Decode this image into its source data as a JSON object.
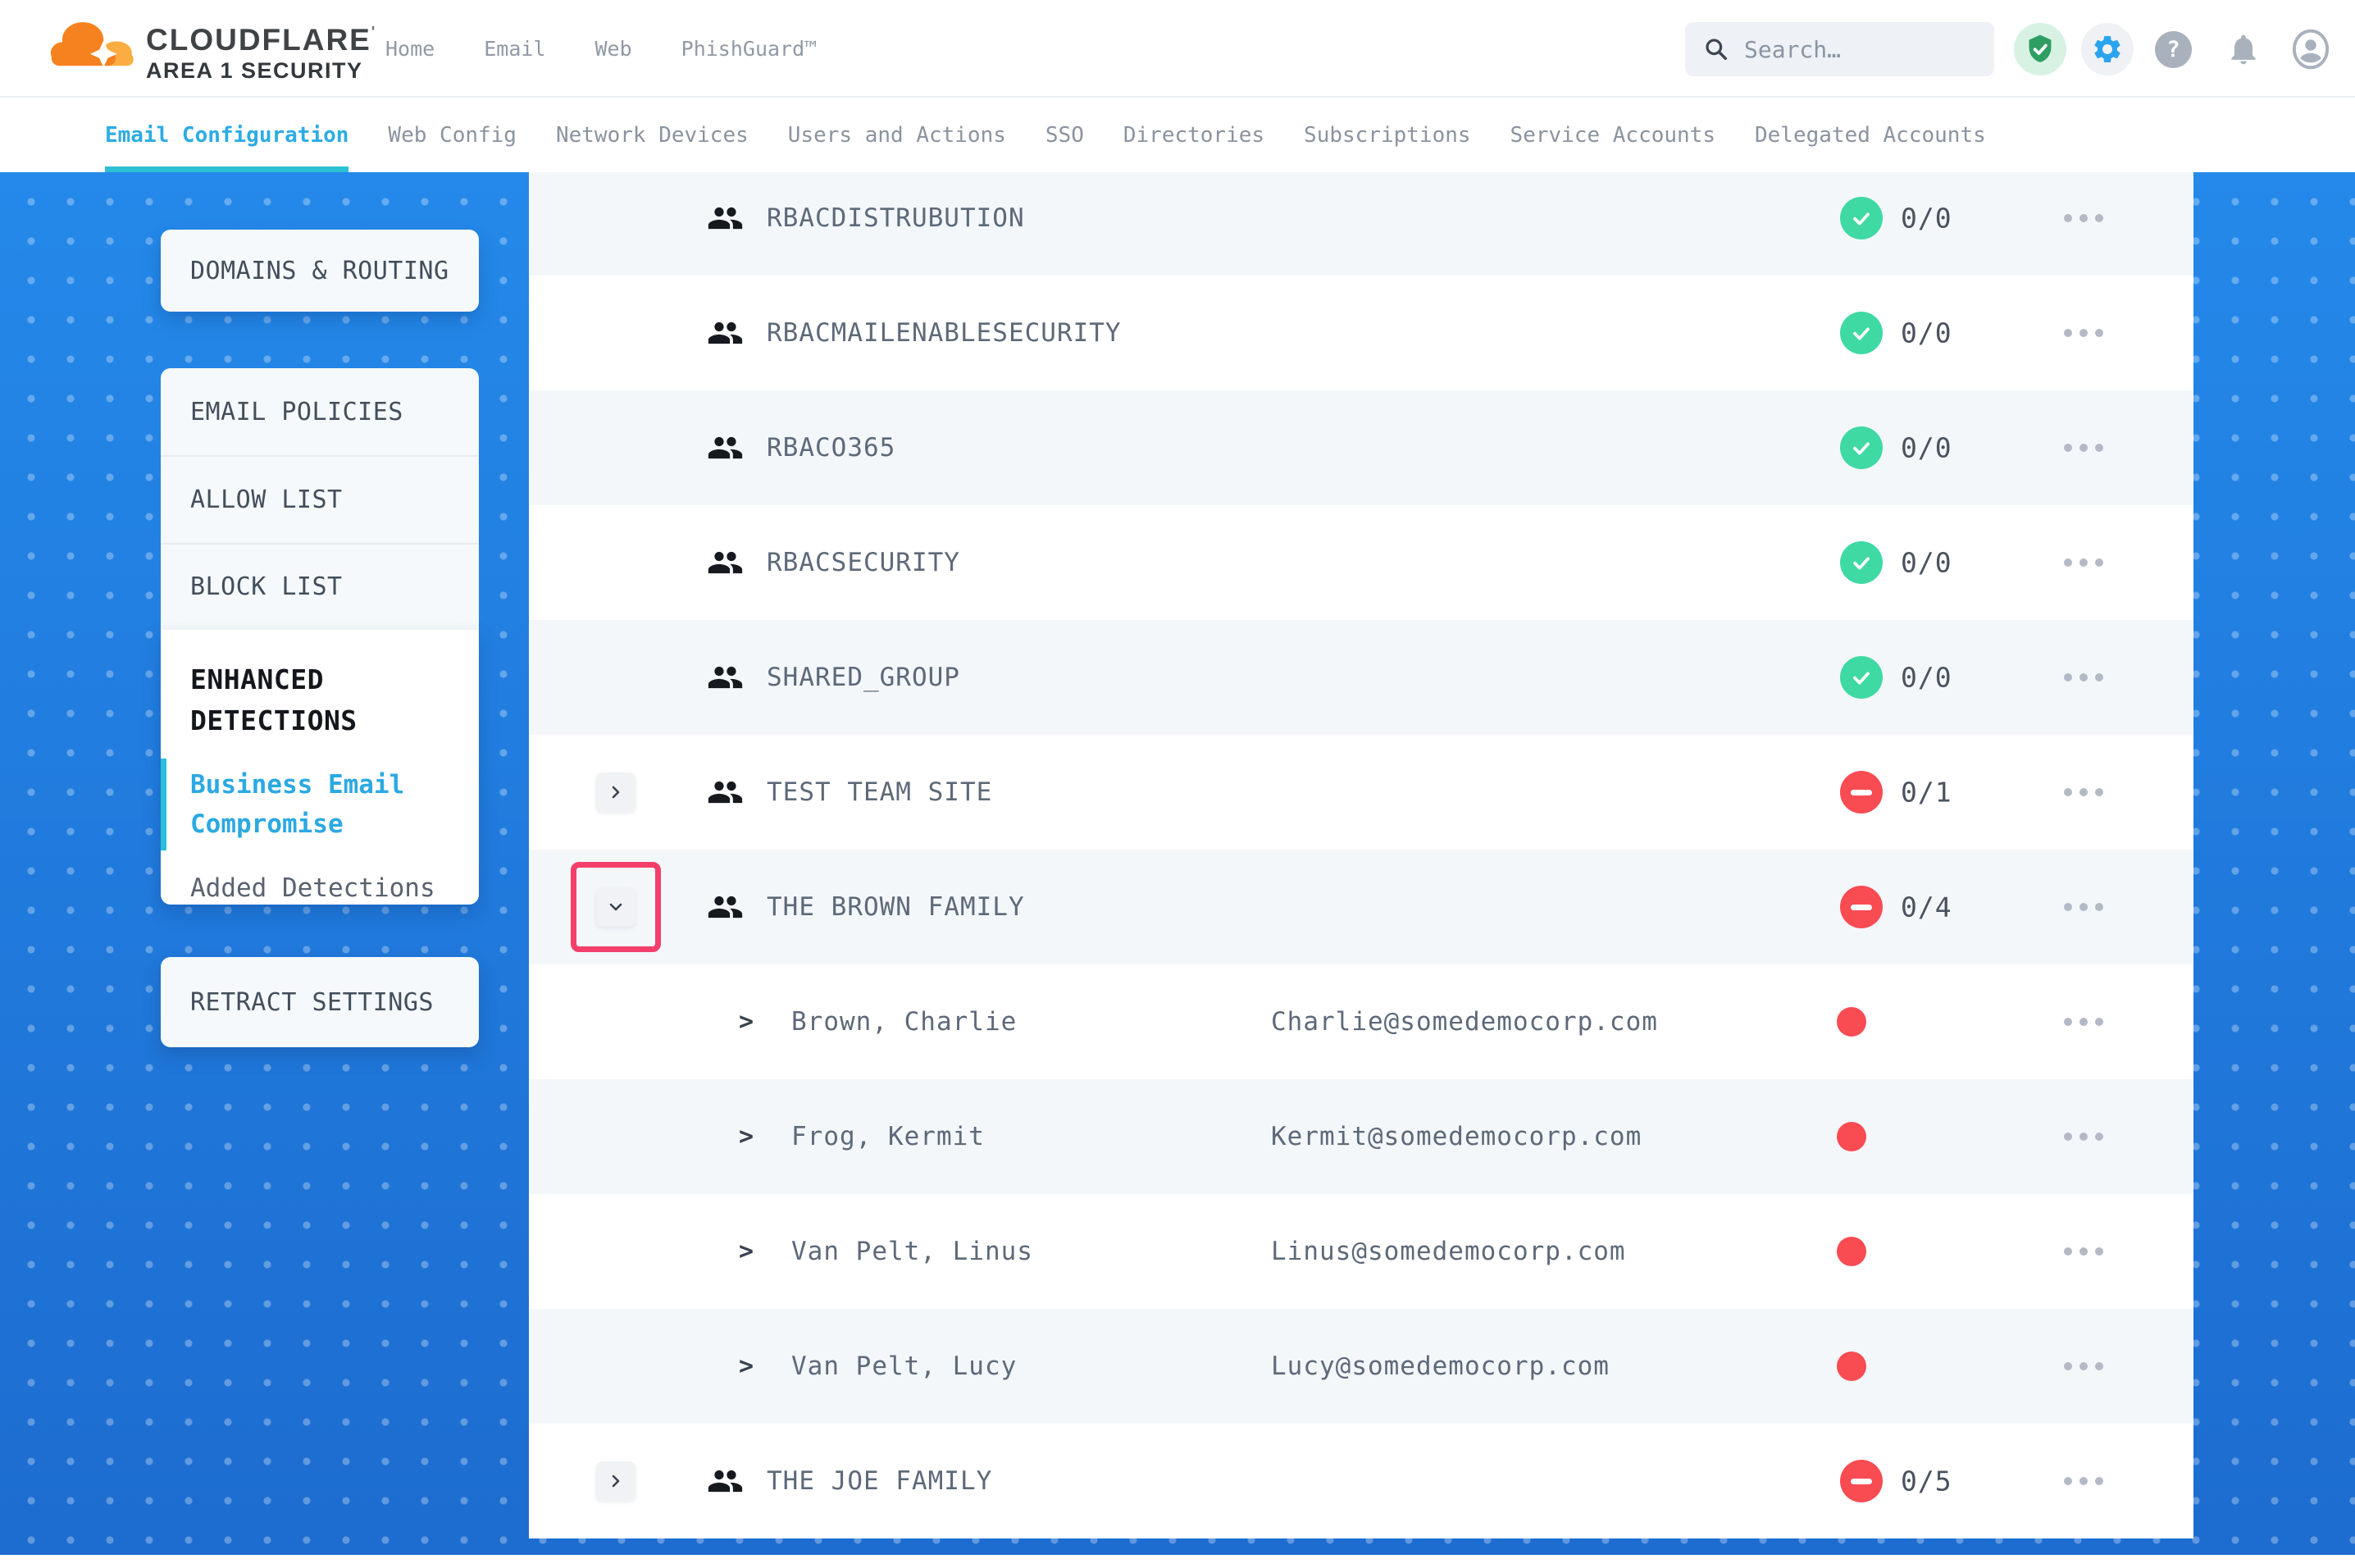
{
  "header": {
    "brand": "CLOUDFLARE",
    "brand_sub": "AREA 1 SECURITY",
    "nav": [
      {
        "label": "Home"
      },
      {
        "label": "Email"
      },
      {
        "label": "Web"
      },
      {
        "label": "PhishGuard™"
      }
    ],
    "search": {
      "placeholder": "Search…"
    },
    "help_glyph": "?"
  },
  "tabs": [
    {
      "label": "Email Configuration",
      "active": true
    },
    {
      "label": "Web Config",
      "active": false
    },
    {
      "label": "Network Devices",
      "active": false
    },
    {
      "label": "Users and Actions",
      "active": false
    },
    {
      "label": "SSO",
      "active": false
    },
    {
      "label": "Directories",
      "active": false
    },
    {
      "label": "Subscriptions",
      "active": false
    },
    {
      "label": "Service Accounts",
      "active": false
    },
    {
      "label": "Delegated Accounts",
      "active": false
    }
  ],
  "sidebar": {
    "domains_routing": "DOMAINS & ROUTING",
    "policies": [
      {
        "label": "EMAIL POLICIES"
      },
      {
        "label": "ALLOW LIST"
      },
      {
        "label": "BLOCK LIST"
      }
    ],
    "enhanced": {
      "title": "ENHANCED DETECTIONS",
      "links": [
        {
          "label": "Business Email Compromise",
          "active": true
        },
        {
          "label": "Added Detections",
          "active": false
        }
      ]
    },
    "retract": "RETRACT SETTINGS"
  },
  "table": {
    "rows": [
      {
        "type": "group",
        "name": "RBACDISTRUBUTION",
        "status": "ok",
        "count": "0/0"
      },
      {
        "type": "group",
        "name": "RBACMAILENABLESECURITY",
        "status": "ok",
        "count": "0/0"
      },
      {
        "type": "group",
        "name": "RBACO365",
        "status": "ok",
        "count": "0/0"
      },
      {
        "type": "group",
        "name": "RBACSECURITY",
        "status": "ok",
        "count": "0/0"
      },
      {
        "type": "group",
        "name": "SHARED_GROUP",
        "status": "ok",
        "count": "0/0"
      },
      {
        "type": "group",
        "name": "TEST TEAM SITE",
        "expand": "collapsed",
        "status": "blocked",
        "count": "0/1"
      },
      {
        "type": "group",
        "name": "THE BROWN FAMILY",
        "expand": "expanded",
        "highlighted": true,
        "status": "blocked",
        "count": "0/4"
      },
      {
        "type": "member",
        "name": "Brown, Charlie",
        "email": "Charlie@somedemocorp.com",
        "status": "dot"
      },
      {
        "type": "member",
        "name": "Frog, Kermit",
        "email": "Kermit@somedemocorp.com",
        "status": "dot"
      },
      {
        "type": "member",
        "name": "Van Pelt, Linus",
        "email": "Linus@somedemocorp.com",
        "status": "dot"
      },
      {
        "type": "member",
        "name": "Van Pelt, Lucy",
        "email": "Lucy@somedemocorp.com",
        "status": "dot"
      },
      {
        "type": "group",
        "name": "THE JOE FAMILY",
        "expand": "collapsed",
        "status": "blocked",
        "count": "0/5"
      }
    ]
  },
  "colors": {
    "accent_blue": "#2AA4EE",
    "active_tab": "#2CACE3",
    "tab_underline": "#2BC0D4",
    "success_green": "#3FD9A4",
    "danger_red": "#F94B52",
    "highlight_pink": "#F43F6B",
    "stage_blue": "#2184E6",
    "logo_orange": "#F6821F",
    "logo_orange_light": "#FBAD41"
  }
}
